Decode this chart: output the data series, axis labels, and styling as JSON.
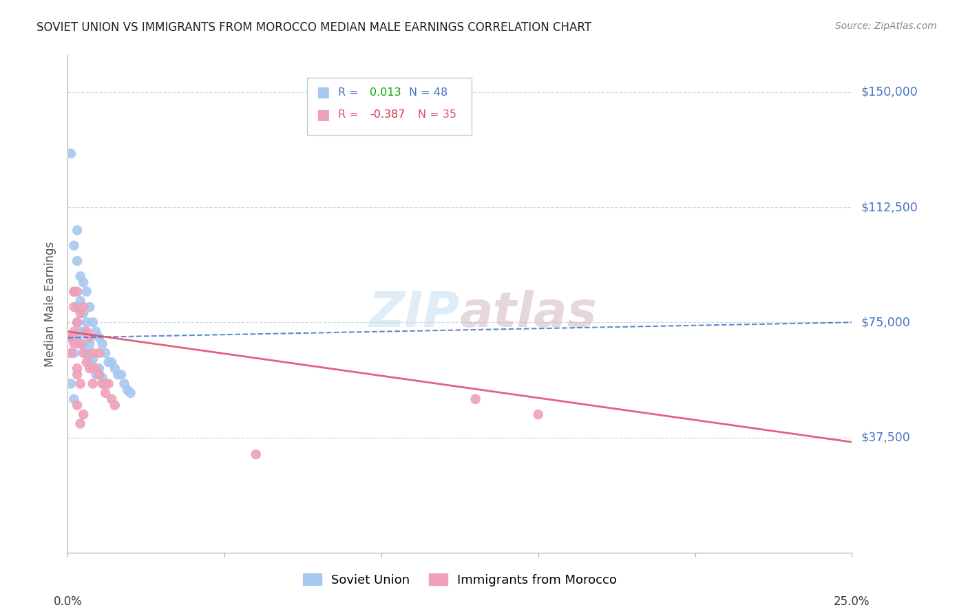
{
  "title": "SOVIET UNION VS IMMIGRANTS FROM MOROCCO MEDIAN MALE EARNINGS CORRELATION CHART",
  "source": "Source: ZipAtlas.com",
  "ylabel": "Median Male Earnings",
  "yticks": [
    0,
    37500,
    75000,
    112500,
    150000
  ],
  "ytick_labels": [
    "",
    "$37,500",
    "$75,000",
    "$112,500",
    "$150,000"
  ],
  "xmin": 0.0,
  "xmax": 0.25,
  "ymin": 0,
  "ymax": 162000,
  "blue_color": "#a8c8f0",
  "pink_color": "#f0a0b8",
  "blue_line_color": "#4472c4",
  "pink_line_color": "#e05070",
  "grid_color": "#d0d8e8",
  "soviet_x": [
    0.001,
    0.001,
    0.002,
    0.002,
    0.002,
    0.003,
    0.003,
    0.003,
    0.003,
    0.004,
    0.004,
    0.004,
    0.005,
    0.005,
    0.005,
    0.006,
    0.006,
    0.006,
    0.007,
    0.007,
    0.008,
    0.008,
    0.009,
    0.009,
    0.01,
    0.01,
    0.011,
    0.012,
    0.013,
    0.014,
    0.015,
    0.016,
    0.017,
    0.018,
    0.019,
    0.02,
    0.001,
    0.002,
    0.003,
    0.004,
    0.005,
    0.006,
    0.007,
    0.008,
    0.009,
    0.01,
    0.011,
    0.012
  ],
  "soviet_y": [
    130000,
    55000,
    100000,
    85000,
    50000,
    105000,
    95000,
    80000,
    70000,
    90000,
    82000,
    72000,
    88000,
    78000,
    68000,
    85000,
    75000,
    65000,
    80000,
    68000,
    75000,
    63000,
    72000,
    60000,
    70000,
    58000,
    68000,
    65000,
    62000,
    62000,
    60000,
    58000,
    58000,
    55000,
    53000,
    52000,
    70000,
    65000,
    75000,
    68000,
    72000,
    65000,
    62000,
    60000,
    58000,
    60000,
    57000,
    55000
  ],
  "morocco_x": [
    0.001,
    0.001,
    0.002,
    0.002,
    0.003,
    0.003,
    0.004,
    0.004,
    0.005,
    0.005,
    0.006,
    0.006,
    0.007,
    0.007,
    0.008,
    0.008,
    0.009,
    0.01,
    0.01,
    0.011,
    0.012,
    0.013,
    0.014,
    0.015,
    0.003,
    0.004,
    0.005,
    0.06,
    0.13,
    0.15,
    0.002,
    0.003,
    0.002,
    0.003,
    0.004
  ],
  "morocco_y": [
    70000,
    65000,
    80000,
    72000,
    85000,
    75000,
    78000,
    68000,
    80000,
    65000,
    72000,
    62000,
    70000,
    60000,
    65000,
    55000,
    60000,
    65000,
    58000,
    55000,
    52000,
    55000,
    50000,
    48000,
    60000,
    55000,
    45000,
    32000,
    50000,
    45000,
    85000,
    58000,
    68000,
    48000,
    42000
  ],
  "blue_trend_x": [
    0.0,
    0.25
  ],
  "blue_trend_y": [
    70000,
    75000
  ],
  "pink_trend_x": [
    0.0,
    0.25
  ],
  "pink_trend_y": [
    72000,
    36000
  ]
}
